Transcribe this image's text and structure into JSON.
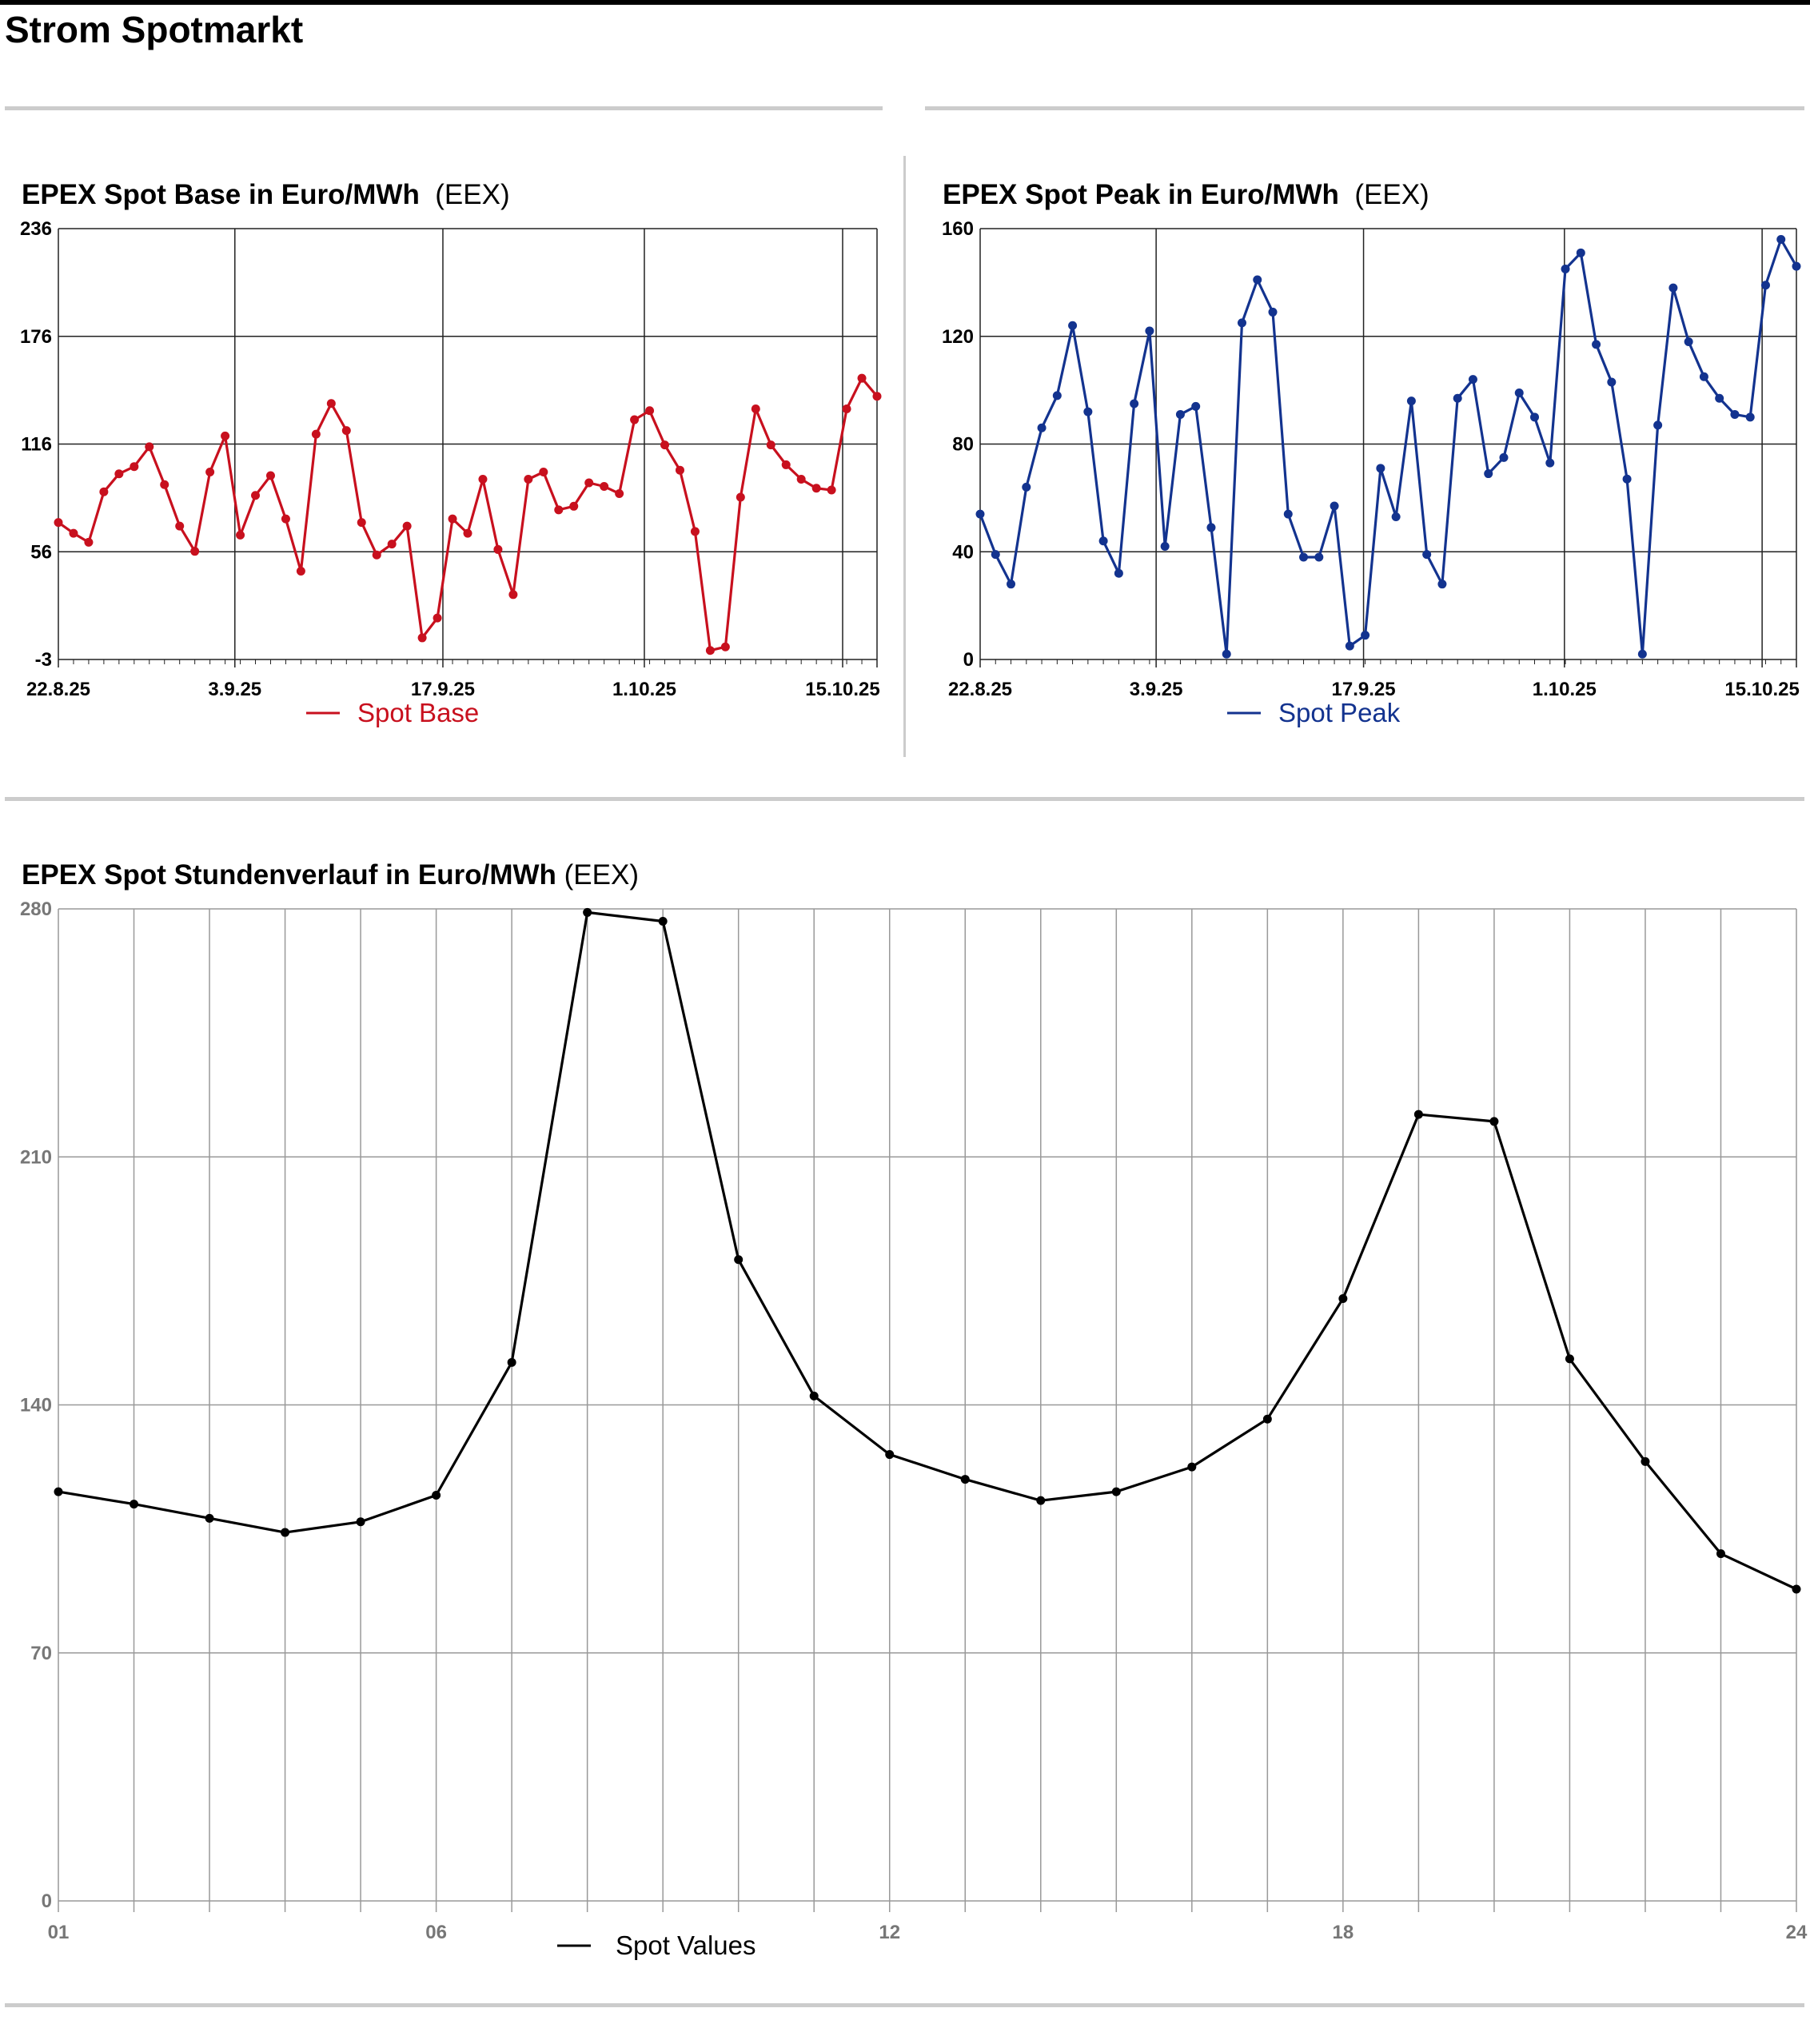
{
  "page": {
    "title": "Strom Spotmarkt"
  },
  "colors": {
    "base": "#c8101e",
    "peak": "#13338f",
    "hourly": "#000000"
  },
  "chart_data": [
    {
      "type": "line",
      "title": "EPEX Spot Base in Euro/MWh",
      "source": "(EEX)",
      "y_ticks": [
        "236",
        "176",
        "116",
        "56",
        "-3"
      ],
      "x_ticks": [
        "22.8.25",
        "3.9.25",
        "17.9.25",
        "1.10.25",
        "15.10.25"
      ],
      "ylim": [
        -3,
        236
      ],
      "x_start": "22.8.25",
      "x_end": "17.10.25",
      "series": [
        {
          "name": "Spot Base",
          "values": [
            73,
            67,
            62,
            90,
            100,
            104,
            115,
            94,
            71,
            57,
            101,
            121,
            66,
            88,
            99,
            75,
            46,
            122,
            139,
            124,
            73,
            55,
            61,
            71,
            9,
            20,
            75,
            67,
            97,
            58,
            33,
            97,
            101,
            80,
            82,
            95,
            93,
            89,
            130,
            135,
            116,
            102,
            68,
            2,
            4,
            87,
            136,
            116,
            105,
            97,
            92,
            91,
            136,
            153,
            143
          ]
        }
      ],
      "grid": true,
      "legend": "bottom-center"
    },
    {
      "type": "line",
      "title": "EPEX Spot Peak in Euro/MWh",
      "source": "(EEX)",
      "y_ticks": [
        "160",
        "120",
        "80",
        "40",
        "0"
      ],
      "x_ticks": [
        "22.8.25",
        "3.9.25",
        "17.9.25",
        "1.10.25",
        "15.10.25"
      ],
      "ylim": [
        0,
        160
      ],
      "x_start": "22.8.25",
      "x_end": "17.10.25",
      "series": [
        {
          "name": "Spot Peak",
          "values": [
            54,
            39,
            28,
            64,
            86,
            98,
            124,
            92,
            44,
            32,
            95,
            122,
            42,
            91,
            94,
            49,
            2,
            125,
            141,
            129,
            54,
            38,
            38,
            57,
            5,
            9,
            71,
            53,
            96,
            39,
            28,
            97,
            104,
            69,
            75,
            99,
            90,
            73,
            145,
            151,
            117,
            103,
            67,
            2,
            87,
            138,
            118,
            105,
            97,
            91,
            90,
            139,
            156,
            146
          ]
        }
      ],
      "grid": true,
      "legend": "bottom-center"
    },
    {
      "type": "line",
      "title": "EPEX Spot Stundenverlauf in Euro/MWh",
      "source": "(EEX)",
      "y_ticks": [
        "280",
        "210",
        "140",
        "70",
        "0"
      ],
      "x_ticks": [
        "01",
        "06",
        "12",
        "18",
        "24"
      ],
      "x_tick_hours": [
        1,
        6,
        12,
        18,
        24
      ],
      "ylim": [
        0,
        280
      ],
      "x": [
        1,
        2,
        3,
        4,
        5,
        6,
        7,
        8,
        9,
        10,
        11,
        12,
        13,
        14,
        15,
        16,
        17,
        18,
        19,
        20,
        21,
        22,
        23,
        24
      ],
      "series": [
        {
          "name": "Spot Values",
          "values": [
            115.5,
            112,
            108,
            104,
            107,
            114.5,
            152,
            279,
            276.5,
            181,
            142.5,
            126,
            119,
            113,
            115.5,
            122.5,
            136,
            170,
            222,
            220,
            153,
            124,
            98,
            88
          ]
        }
      ],
      "grid": true,
      "legend": "bottom-center"
    }
  ]
}
